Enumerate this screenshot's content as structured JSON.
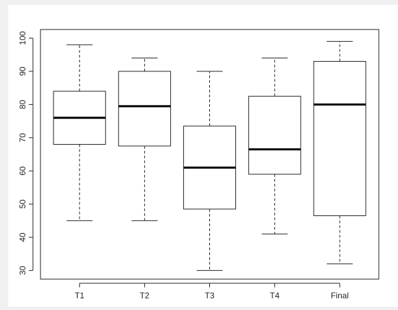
{
  "chart_data": {
    "type": "box",
    "title": "",
    "xlabel": "",
    "ylabel": "",
    "ylim": [
      27.4,
      102.6
    ],
    "yticks": [
      30,
      40,
      50,
      60,
      70,
      80,
      90,
      100
    ],
    "categories": [
      "T1",
      "T2",
      "T3",
      "T4",
      "Final"
    ],
    "boxes": [
      {
        "label": "T1",
        "min": 45,
        "q1": 68,
        "median": 76,
        "q3": 84,
        "max": 98
      },
      {
        "label": "T2",
        "min": 45,
        "q1": 67.5,
        "median": 79.5,
        "q3": 90,
        "max": 94
      },
      {
        "label": "T3",
        "min": 30,
        "q1": 48.5,
        "median": 61,
        "q3": 73.5,
        "max": 90
      },
      {
        "label": "T4",
        "min": 41,
        "q1": 59,
        "median": 66.5,
        "q3": 82.5,
        "max": 94
      },
      {
        "label": "Final",
        "min": 32,
        "q1": 46.5,
        "median": 80,
        "q3": 93,
        "max": 99
      }
    ],
    "grid": false,
    "legend": "none"
  }
}
